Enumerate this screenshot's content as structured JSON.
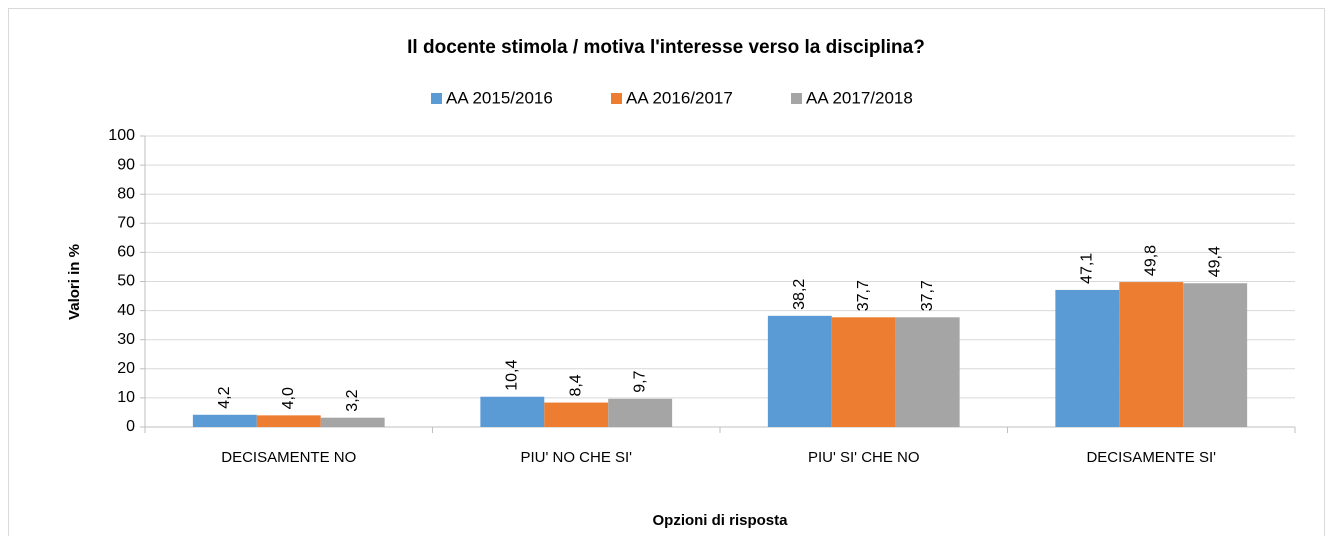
{
  "chart_data": {
    "type": "bar",
    "title": "Il docente stimola / motiva l'interesse verso la disciplina?",
    "x_label": "Opzioni di risposta",
    "y_label": "Valori in %",
    "categories": [
      "DECISAMENTE NO",
      "PIU' NO CHE SI'",
      "PIU' SI' CHE NO",
      "DECISAMENTE SI'"
    ],
    "series": [
      {
        "name": "AA 2015/2016",
        "color": "#5b9bd5",
        "values": [
          4.2,
          10.4,
          38.2,
          47.1
        ],
        "value_labels": [
          "4,2",
          "10,4",
          "38,2",
          "47,1"
        ]
      },
      {
        "name": "AA 2016/2017",
        "color": "#ed7d31",
        "values": [
          4.0,
          8.4,
          37.7,
          49.8
        ],
        "value_labels": [
          "4,0",
          "8,4",
          "37,7",
          "49,8"
        ]
      },
      {
        "name": "AA 2017/2018",
        "color": "#a5a5a5",
        "values": [
          3.2,
          9.7,
          37.7,
          49.4
        ],
        "value_labels": [
          "3,2",
          "9,7",
          "37,7",
          "49,4"
        ]
      }
    ],
    "ylim": [
      0,
      100
    ],
    "yticks": [
      0,
      10,
      20,
      30,
      40,
      50,
      60,
      70,
      80,
      90,
      100
    ],
    "grid": true,
    "legend": "top"
  }
}
